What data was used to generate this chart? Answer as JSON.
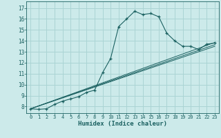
{
  "xlabel": "Humidex (Indice chaleur)",
  "bg_color": "#cceaea",
  "grid_color": "#aad4d4",
  "line_color": "#1a6060",
  "xlim": [
    -0.5,
    23.5
  ],
  "ylim": [
    7.4,
    17.6
  ],
  "xticks": [
    0,
    1,
    2,
    3,
    4,
    5,
    6,
    7,
    8,
    9,
    10,
    11,
    12,
    13,
    14,
    15,
    16,
    17,
    18,
    19,
    20,
    21,
    22,
    23
  ],
  "yticks": [
    8,
    9,
    10,
    11,
    12,
    13,
    14,
    15,
    16,
    17
  ],
  "line1_x": [
    0,
    1,
    2,
    3,
    4,
    5,
    6,
    7,
    8,
    9,
    10,
    11,
    12,
    13,
    14,
    15,
    16,
    17,
    18,
    19,
    20,
    21,
    22,
    23
  ],
  "line1_y": [
    7.8,
    7.75,
    7.8,
    8.2,
    8.5,
    8.7,
    8.9,
    9.3,
    9.5,
    11.1,
    12.4,
    15.3,
    16.0,
    16.7,
    16.4,
    16.5,
    16.2,
    14.7,
    14.0,
    13.5,
    13.5,
    13.2,
    13.7,
    13.8
  ],
  "line2_x": [
    0,
    23
  ],
  "line2_y": [
    7.8,
    13.5
  ],
  "line3_x": [
    0,
    23
  ],
  "line3_y": [
    7.8,
    13.65
  ],
  "line4_x": [
    0,
    23
  ],
  "line4_y": [
    7.8,
    13.85
  ]
}
